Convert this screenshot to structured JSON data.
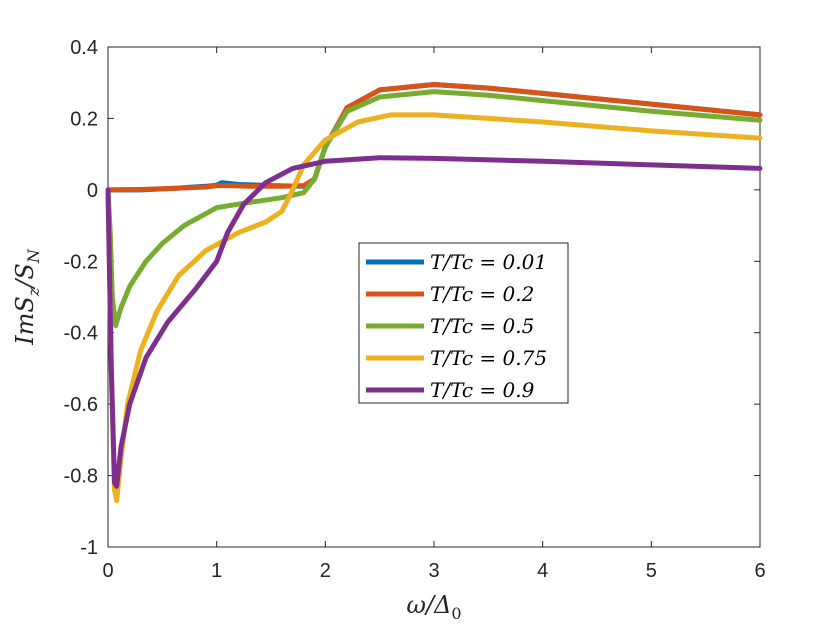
{
  "chart_data": {
    "type": "line",
    "xlabel": "ω/Δ₀",
    "ylabel": "ImSz/SN",
    "xlim": [
      0,
      6
    ],
    "ylim": [
      -1,
      0.4
    ],
    "xticks": [
      "0",
      "1",
      "2",
      "3",
      "4",
      "5",
      "6"
    ],
    "yticks": [
      "0.4",
      "0.2",
      "0",
      "-0.2",
      "-0.4",
      "-0.6",
      "-0.8",
      "-1"
    ],
    "grid": false,
    "legend_position": "center",
    "series": [
      {
        "name": "T/Tc = 0.01",
        "color": "#0072BD",
        "x": [
          0,
          0.3,
          0.6,
          0.9,
          1.0,
          1.05,
          1.2,
          1.5,
          1.8,
          1.9,
          2.0,
          2.2,
          2.5,
          3.0,
          3.5,
          4.0,
          5.0,
          6.0
        ],
        "y": [
          0,
          0.0,
          0.004,
          0.01,
          0.013,
          0.02,
          0.015,
          0.012,
          0.01,
          0.03,
          0.12,
          0.23,
          0.28,
          0.295,
          0.285,
          0.27,
          0.24,
          0.21
        ]
      },
      {
        "name": "T/Tc = 0.2",
        "color": "#D95319",
        "x": [
          0,
          0.3,
          0.6,
          0.9,
          1.0,
          1.1,
          1.3,
          1.6,
          1.8,
          1.9,
          2.0,
          2.2,
          2.5,
          3.0,
          3.5,
          4.0,
          5.0,
          6.0
        ],
        "y": [
          0,
          0.001,
          0.004,
          0.008,
          0.012,
          0.012,
          0.01,
          0.01,
          0.012,
          0.03,
          0.12,
          0.23,
          0.28,
          0.295,
          0.285,
          0.27,
          0.24,
          0.21
        ]
      },
      {
        "name": "T/Tc = 0.5",
        "color": "#77AC30",
        "x": [
          0,
          0.02,
          0.04,
          0.07,
          0.12,
          0.2,
          0.35,
          0.5,
          0.7,
          1.0,
          1.3,
          1.6,
          1.8,
          1.9,
          2.0,
          2.2,
          2.5,
          3.0,
          3.5,
          4.0,
          5.0,
          6.0
        ],
        "y": [
          0,
          -0.12,
          -0.3,
          -0.38,
          -0.33,
          -0.27,
          -0.2,
          -0.15,
          -0.1,
          -0.05,
          -0.035,
          -0.022,
          -0.008,
          0.03,
          0.12,
          0.22,
          0.26,
          0.275,
          0.265,
          0.25,
          0.22,
          0.195
        ]
      },
      {
        "name": "T/Tc = 0.75",
        "color": "#EDB120",
        "x": [
          0,
          0.03,
          0.06,
          0.08,
          0.12,
          0.18,
          0.3,
          0.45,
          0.65,
          0.9,
          1.2,
          1.45,
          1.6,
          1.7,
          1.8,
          2.0,
          2.3,
          2.6,
          3.0,
          3.5,
          4.0,
          5.0,
          6.0
        ],
        "y": [
          0,
          -0.5,
          -0.84,
          -0.87,
          -0.75,
          -0.6,
          -0.45,
          -0.34,
          -0.24,
          -0.17,
          -0.12,
          -0.09,
          -0.06,
          0.0,
          0.07,
          0.14,
          0.19,
          0.21,
          0.21,
          0.2,
          0.19,
          0.165,
          0.145
        ]
      },
      {
        "name": "T/Tc = 0.9",
        "color": "#7E2F8E",
        "x": [
          0,
          0.03,
          0.06,
          0.08,
          0.12,
          0.2,
          0.35,
          0.55,
          0.8,
          1.0,
          1.1,
          1.25,
          1.45,
          1.7,
          2.0,
          2.5,
          3.0,
          4.0,
          5.0,
          6.0
        ],
        "y": [
          0,
          -0.5,
          -0.82,
          -0.83,
          -0.72,
          -0.6,
          -0.47,
          -0.37,
          -0.28,
          -0.2,
          -0.12,
          -0.04,
          0.02,
          0.06,
          0.08,
          0.09,
          0.088,
          0.08,
          0.07,
          0.06
        ]
      }
    ]
  }
}
